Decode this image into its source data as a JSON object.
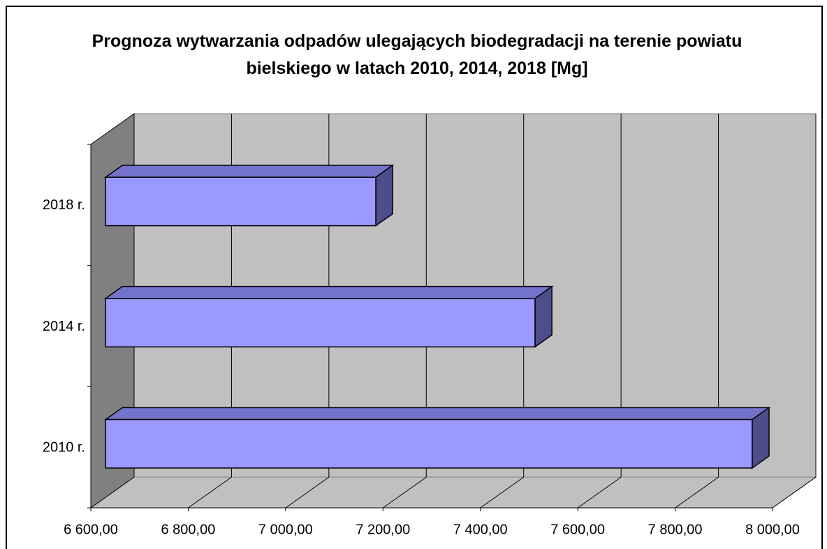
{
  "chart_data": {
    "type": "bar3d_horizontal",
    "title": "Prognoza wytwarzania odpadów ulegających biodegradacji na terenie powiatu bielskiego w latach 2010, 2014, 2018 [Mg]",
    "categories": [
      "2010 r.",
      "2014 r.",
      "2018 r."
    ],
    "values": [
      7928,
      7482,
      7155
    ],
    "color": "#9999ff",
    "xlim": [
      6600,
      8000
    ],
    "xticks": [
      {
        "value": 6600,
        "label": "6 600,00"
      },
      {
        "value": 6800,
        "label": "6 800,00"
      },
      {
        "value": 7000,
        "label": "7 000,00"
      },
      {
        "value": 7200,
        "label": "7 200,00"
      },
      {
        "value": 7400,
        "label": "7 400,00"
      },
      {
        "value": 7600,
        "label": "7 600,00"
      },
      {
        "value": 7800,
        "label": "7 800,00"
      },
      {
        "value": 8000,
        "label": "8 000,00"
      }
    ],
    "grid": true
  }
}
